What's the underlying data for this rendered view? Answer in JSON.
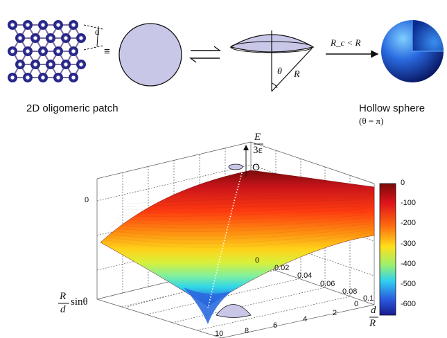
{
  "top": {
    "patch_label": "2D oligomeric patch",
    "d_label": "d",
    "equiv_symbol": "≡",
    "arrow_condition": "R_c < R",
    "theta_label": "θ",
    "r_label": "R",
    "sphere_label": "Hollow sphere",
    "sphere_condition": "(θ = π)"
  },
  "plot": {
    "z_axis_label_num": "E",
    "z_axis_label_den": "3ε",
    "x_axis_label_num": "d",
    "x_axis_label_den": "R",
    "y_axis_label_num": "R",
    "y_axis_label_den": "d",
    "y_axis_label_suffix": "sinθ",
    "z_ticks": [
      "0"
    ],
    "dR_ticks": [
      "0",
      "0.02",
      "0.04",
      "0.06",
      "0.08",
      "0.1"
    ],
    "rd_ticks": [
      "0",
      "2",
      "4",
      "6",
      "8",
      "10"
    ],
    "origin_marker": "O",
    "colorbar_ticks": [
      "0",
      "-100",
      "-200",
      "-300",
      "-400",
      "-500",
      "-600"
    ]
  },
  "colors": {
    "patch_fill": "#c9c7e8",
    "hex_node": "#2a2a8f",
    "sphere_dark": "#0a1a6b",
    "sphere_light": "#4aa6ff"
  }
}
